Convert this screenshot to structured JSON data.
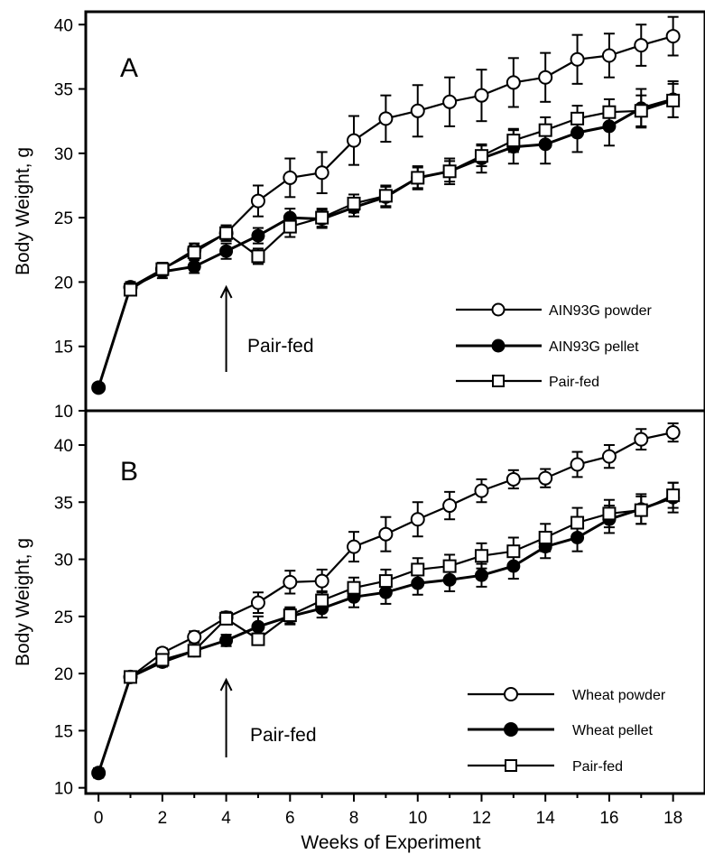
{
  "chart_data": [
    {
      "type": "line",
      "panel_label": "A",
      "ylabel": "Body Weight, g",
      "xlabel": "",
      "ylim": [
        10,
        41
      ],
      "xlim": [
        -0.4,
        19
      ],
      "yticks": [
        10,
        15,
        20,
        25,
        30,
        35,
        40
      ],
      "xticks": [
        0,
        2,
        4,
        6,
        8,
        10,
        12,
        14,
        16,
        18
      ],
      "legend_position": "bottom-right",
      "annotation": {
        "text": "Pair-fed",
        "arrow_x": 4
      },
      "series": [
        {
          "name": "AIN93G powder",
          "marker": "open-circle",
          "x": [
            0,
            1,
            2,
            3,
            4,
            5,
            6,
            7,
            8,
            9,
            10,
            11,
            12,
            13,
            14,
            15,
            16,
            17,
            18
          ],
          "y": [
            11.8,
            19.6,
            21.0,
            22.5,
            23.8,
            26.3,
            28.1,
            28.5,
            31.0,
            32.7,
            33.3,
            34.0,
            34.5,
            35.5,
            35.9,
            37.3,
            37.6,
            38.4,
            39.1
          ],
          "err": [
            0,
            0.4,
            0.5,
            0.5,
            0.6,
            1.2,
            1.5,
            1.6,
            1.9,
            1.8,
            2.0,
            1.9,
            2.0,
            1.9,
            1.9,
            1.9,
            1.7,
            1.6,
            1.5
          ]
        },
        {
          "name": "AIN93G pellet",
          "marker": "filled-circle",
          "x": [
            0,
            1,
            2,
            3,
            4,
            5,
            6,
            7,
            8,
            9,
            10,
            11,
            12,
            13,
            14,
            15,
            16,
            17,
            18
          ],
          "y": [
            11.8,
            19.6,
            20.8,
            21.2,
            22.4,
            23.6,
            25.0,
            24.9,
            25.8,
            26.6,
            28.1,
            28.6,
            29.6,
            30.5,
            30.7,
            31.6,
            32.1,
            33.5,
            34.2
          ],
          "err": [
            0,
            0.4,
            0.5,
            0.5,
            0.6,
            0.6,
            0.7,
            0.7,
            0.7,
            0.8,
            0.9,
            1.0,
            1.1,
            1.3,
            1.5,
            1.5,
            1.5,
            1.5,
            1.4
          ]
        },
        {
          "name": "Pair-fed",
          "marker": "open-square",
          "x": [
            1,
            2,
            3,
            4,
            5,
            6,
            7,
            8,
            9,
            10,
            11,
            12,
            13,
            14,
            15,
            16,
            17,
            18
          ],
          "y": [
            19.4,
            21.0,
            22.3,
            23.8,
            22.0,
            24.3,
            25.0,
            26.1,
            26.7,
            28.1,
            28.6,
            29.8,
            31.0,
            31.8,
            32.7,
            33.2,
            33.3,
            34.1
          ],
          "err": [
            0.4,
            0.5,
            0.5,
            0.6,
            0.6,
            0.8,
            0.7,
            0.7,
            0.8,
            0.8,
            0.8,
            0.8,
            0.9,
            1.0,
            1.0,
            1.0,
            1.2,
            1.3
          ]
        }
      ]
    },
    {
      "type": "line",
      "panel_label": "B",
      "ylabel": "Body Weight, g",
      "xlabel": "Weeks of Experiment",
      "ylim": [
        9.5,
        43
      ],
      "xlim": [
        -0.4,
        19
      ],
      "yticks": [
        10,
        15,
        20,
        25,
        30,
        35,
        40
      ],
      "xticks": [
        0,
        2,
        4,
        6,
        8,
        10,
        12,
        14,
        16,
        18
      ],
      "legend_position": "bottom-right",
      "annotation": {
        "text": "Pair-fed",
        "arrow_x": 4
      },
      "series": [
        {
          "name": "Wheat powder",
          "marker": "open-circle",
          "x": [
            0,
            1,
            2,
            3,
            4,
            5,
            6,
            7,
            8,
            9,
            10,
            11,
            12,
            13,
            14,
            15,
            16,
            17,
            18
          ],
          "y": [
            11.3,
            19.7,
            21.8,
            23.2,
            24.9,
            26.2,
            28.0,
            28.1,
            31.1,
            32.2,
            33.5,
            34.7,
            36.0,
            37.0,
            37.1,
            38.3,
            39.0,
            40.5,
            41.1
          ],
          "err": [
            0.4,
            0.4,
            0.4,
            0.5,
            0.5,
            0.9,
            1.0,
            1.0,
            1.3,
            1.5,
            1.5,
            1.2,
            1.0,
            0.8,
            0.8,
            1.1,
            1.0,
            0.9,
            0.8
          ]
        },
        {
          "name": "Wheat pellet",
          "marker": "filled-circle",
          "x": [
            0,
            1,
            2,
            3,
            4,
            5,
            6,
            7,
            8,
            9,
            10,
            11,
            12,
            13,
            14,
            15,
            16,
            17,
            18
          ],
          "y": [
            11.3,
            19.7,
            21.0,
            22.0,
            22.9,
            24.1,
            25.0,
            25.7,
            26.7,
            27.1,
            27.9,
            28.2,
            28.6,
            29.4,
            31.1,
            31.9,
            33.5,
            34.4,
            35.4
          ],
          "err": [
            0.4,
            0.4,
            0.4,
            0.4,
            0.5,
            0.9,
            0.7,
            0.8,
            0.9,
            1.0,
            1.0,
            1.0,
            1.0,
            1.1,
            1.0,
            1.2,
            1.2,
            1.3,
            1.3
          ]
        },
        {
          "name": "Pair-fed",
          "marker": "open-square",
          "x": [
            1,
            2,
            3,
            4,
            5,
            6,
            7,
            8,
            9,
            10,
            11,
            12,
            13,
            14,
            15,
            16,
            17,
            18
          ],
          "y": [
            19.7,
            21.2,
            22.0,
            24.8,
            23.0,
            25.1,
            26.4,
            27.5,
            28.1,
            29.1,
            29.4,
            30.3,
            30.7,
            31.9,
            33.2,
            34.0,
            34.3,
            35.6
          ],
          "err": [
            0.4,
            0.4,
            0.5,
            0.5,
            0.5,
            0.7,
            0.8,
            0.9,
            1.0,
            1.0,
            1.0,
            1.1,
            1.2,
            1.2,
            1.3,
            1.2,
            1.2,
            1.1
          ]
        }
      ]
    }
  ]
}
